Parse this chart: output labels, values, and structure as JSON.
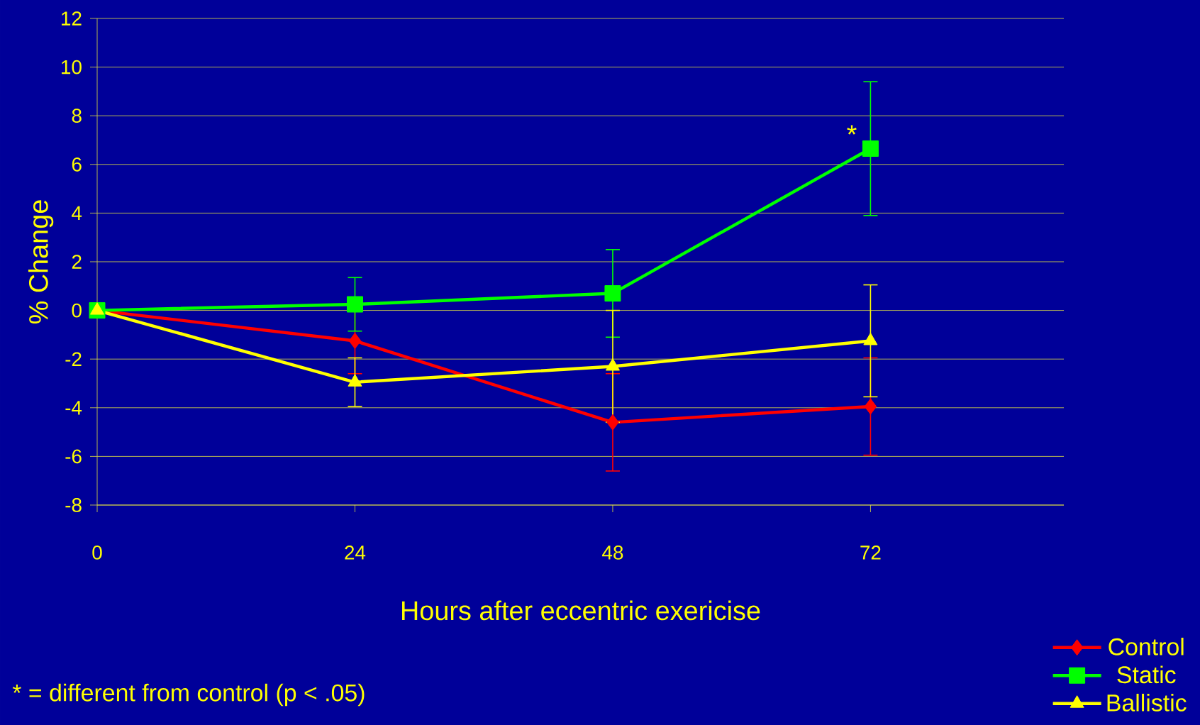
{
  "chart_data": {
    "type": "line",
    "xlabel": "Hours after eccentric exericise",
    "ylabel": "% Change",
    "x": [
      0,
      24,
      48,
      72
    ],
    "xlim": [
      0,
      90
    ],
    "xticks": [
      0,
      24,
      48,
      72
    ],
    "ylim": [
      -8,
      12
    ],
    "yticks": [
      -8,
      -6,
      -4,
      -2,
      0,
      2,
      4,
      6,
      8,
      10,
      12
    ],
    "grid": "y",
    "legend": "bottom right",
    "series": [
      {
        "name": "Control",
        "color": "#ff0000",
        "marker": "diamond",
        "values": [
          0,
          -1.25,
          -4.6,
          -3.95
        ],
        "errors": [
          null,
          1.35,
          2,
          2
        ]
      },
      {
        "name": "Static",
        "color": "#00ff00",
        "marker": "square",
        "values": [
          0,
          0.25,
          0.7,
          6.65
        ],
        "errors": [
          null,
          1.1,
          1.8,
          2.75
        ]
      },
      {
        "name": "Ballistic",
        "color": "#ffff00",
        "marker": "triangle",
        "values": [
          0,
          -2.95,
          -2.3,
          -1.25
        ],
        "errors": [
          null,
          1,
          2.3,
          2.3
        ]
      }
    ],
    "annotations": [
      {
        "text": "*",
        "x": 72,
        "y": 6.65
      },
      "* = different from control (p < .05)"
    ]
  }
}
